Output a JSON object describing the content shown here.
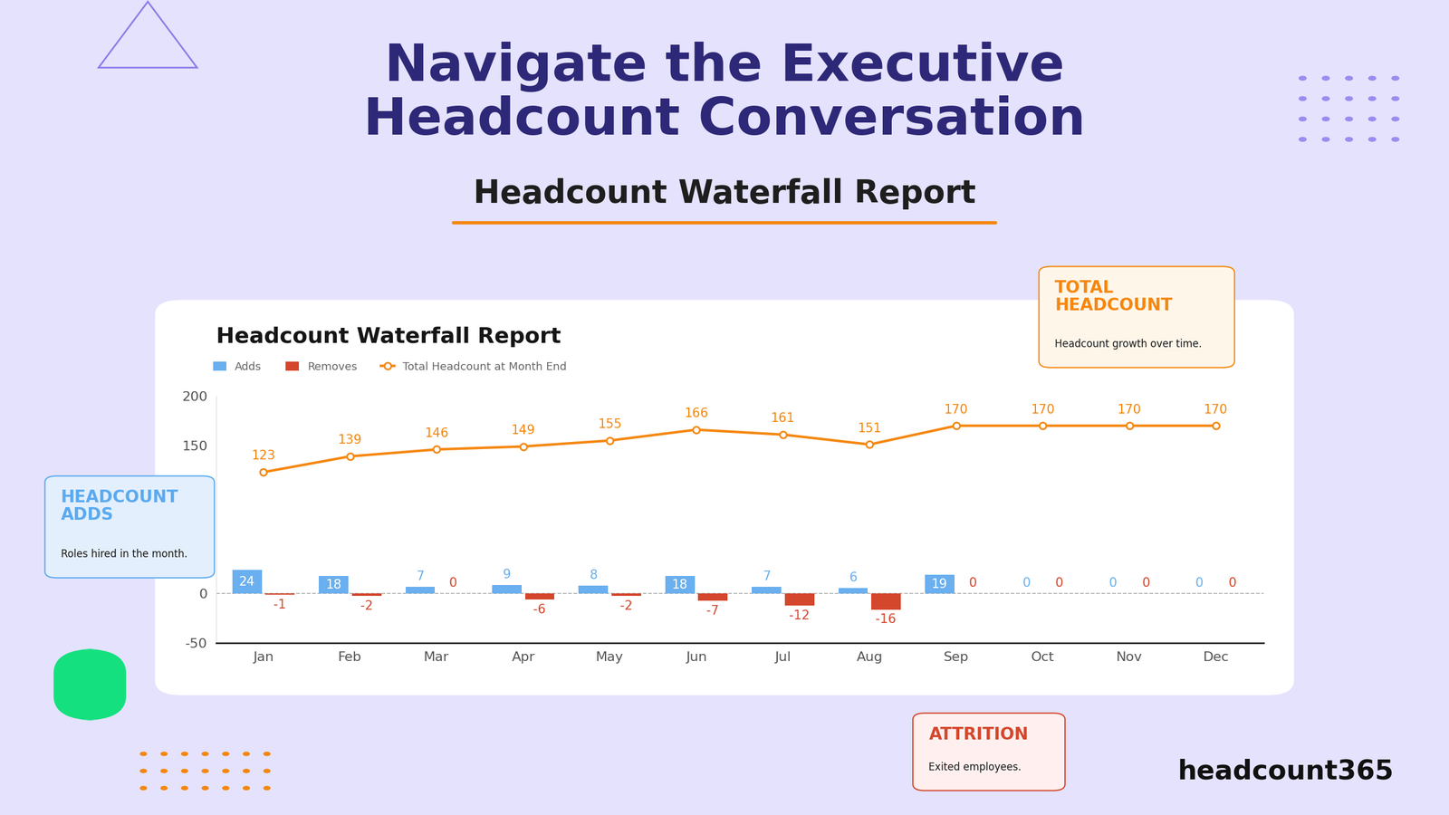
{
  "header": {
    "title_lines": [
      "Navigate the Executive",
      "Headcount Conversation"
    ],
    "subtitle": "Headcount Waterfall Report"
  },
  "chart_data": {
    "type": "bar",
    "title": "Headcount Waterfall Report",
    "categories": [
      "Jan",
      "Feb",
      "Mar",
      "Apr",
      "May",
      "Jun",
      "Jul",
      "Aug",
      "Sep",
      "Oct",
      "Nov",
      "Dec"
    ],
    "series": [
      {
        "name": "Adds",
        "type": "bar",
        "color": "#6aafef",
        "values": [
          24,
          18,
          7,
          9,
          8,
          18,
          7,
          6,
          19,
          0,
          0,
          0
        ]
      },
      {
        "name": "Removes",
        "type": "bar",
        "color": "#d4472c",
        "values": [
          -1,
          -2,
          0,
          -6,
          -2,
          -7,
          -12,
          -16,
          0,
          0,
          0,
          0
        ]
      },
      {
        "name": "Total Headcount at Month End",
        "type": "line",
        "color": "#f5870f",
        "marker": "o",
        "values": [
          123,
          139,
          146,
          149,
          155,
          166,
          161,
          151,
          170,
          170,
          170,
          170
        ]
      }
    ],
    "ylim": [
      -50,
      200
    ],
    "yticks": [
      -50,
      0,
      150,
      200
    ],
    "grid": false,
    "data_labels": true,
    "legend": "upper left"
  },
  "annotations": [
    {
      "title": "HEADCOUNT ADDS",
      "text": "Roles hired in the month.",
      "color": "#5aaaf0"
    },
    {
      "title": "TOTAL HEADCOUNT",
      "text": "Headcount growth over time.",
      "color": "#f5870f"
    },
    {
      "title": "ATTRITION",
      "text": "Exited employees.",
      "color": "#d4472c"
    }
  ],
  "brand": "headcount365"
}
